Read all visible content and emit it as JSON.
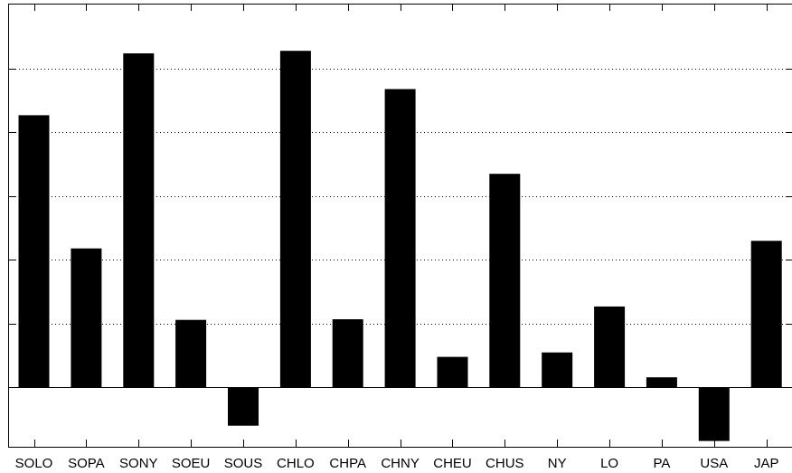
{
  "chart_data": {
    "type": "bar",
    "title": "",
    "xlabel": "",
    "ylabel": "",
    "categories": [
      "SOLO",
      "SOPA",
      "SONY",
      "SOEU",
      "SOUS",
      "CHLO",
      "CHPA",
      "CHNY",
      "CHEU",
      "CHUS",
      "NY",
      "LO",
      "PA",
      "USA",
      "JAP"
    ],
    "values": [
      4.27,
      2.18,
      5.24,
      1.06,
      -0.6,
      5.28,
      1.07,
      4.68,
      0.48,
      3.35,
      0.55,
      1.27,
      0.16,
      -0.84,
      2.3
    ],
    "ylim": [
      -0.93,
      6.02
    ],
    "yticks": [
      -0.93,
      0,
      1,
      2,
      3,
      4,
      5,
      6.02
    ],
    "ytick_labels_shown": false,
    "grid": "dotted horizontal lines at y ticks",
    "bar_color": "#000000"
  }
}
